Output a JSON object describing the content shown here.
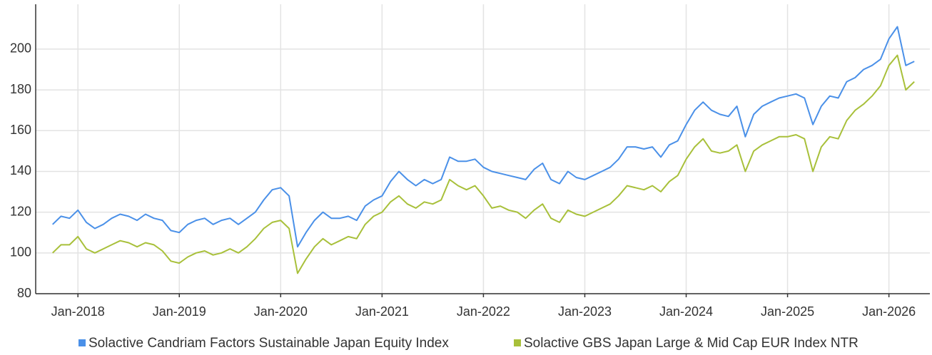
{
  "chart_data": {
    "type": "line",
    "x": [
      "2017-10",
      "2017-11",
      "2017-12",
      "2018-01",
      "2018-02",
      "2018-03",
      "2018-04",
      "2018-05",
      "2018-06",
      "2018-07",
      "2018-08",
      "2018-09",
      "2018-10",
      "2018-11",
      "2018-12",
      "2019-01",
      "2019-02",
      "2019-03",
      "2019-04",
      "2019-05",
      "2019-06",
      "2019-07",
      "2019-08",
      "2019-09",
      "2019-10",
      "2019-11",
      "2019-12",
      "2020-01",
      "2020-02",
      "2020-03",
      "2020-04",
      "2020-05",
      "2020-06",
      "2020-07",
      "2020-08",
      "2020-09",
      "2020-10",
      "2020-11",
      "2020-12",
      "2021-01",
      "2021-02",
      "2021-03",
      "2021-04",
      "2021-05",
      "2021-06",
      "2021-07",
      "2021-08",
      "2021-09",
      "2021-10",
      "2021-11",
      "2021-12",
      "2022-01",
      "2022-02",
      "2022-03",
      "2022-04",
      "2022-05",
      "2022-06",
      "2022-07",
      "2022-08",
      "2022-09",
      "2022-10",
      "2022-11",
      "2022-12",
      "2023-01",
      "2023-02",
      "2023-03",
      "2023-04",
      "2023-05",
      "2023-06",
      "2023-07",
      "2023-08",
      "2023-09",
      "2023-10",
      "2023-11",
      "2023-12",
      "2024-01",
      "2024-02",
      "2024-03",
      "2024-04",
      "2024-05",
      "2024-06",
      "2024-07",
      "2024-08",
      "2024-09",
      "2024-10",
      "2024-11",
      "2024-12",
      "2025-01",
      "2025-02",
      "2025-03",
      "2025-04",
      "2025-05",
      "2025-06",
      "2025-07",
      "2025-08",
      "2025-09",
      "2025-10",
      "2025-11",
      "2025-12",
      "2026-01",
      "2026-02",
      "2026-03",
      "2026-04"
    ],
    "series": [
      {
        "name": "Solactive Candriam Factors Sustainable Japan Equity Index",
        "color": "#4a90e8",
        "values": [
          114,
          118,
          117,
          121,
          115,
          112,
          114,
          117,
          119,
          118,
          116,
          119,
          117,
          116,
          111,
          110,
          114,
          116,
          117,
          114,
          116,
          117,
          114,
          117,
          120,
          126,
          131,
          132,
          128,
          103,
          110,
          116,
          120,
          117,
          117,
          118,
          116,
          123,
          126,
          128,
          135,
          140,
          136,
          133,
          136,
          134,
          136,
          147,
          145,
          145,
          146,
          142,
          140,
          139,
          138,
          137,
          136,
          141,
          144,
          136,
          134,
          140,
          137,
          136,
          138,
          140,
          142,
          146,
          152,
          152,
          151,
          152,
          147,
          153,
          155,
          163,
          170,
          174,
          170,
          168,
          167,
          172,
          157,
          168,
          172,
          174,
          176,
          177,
          178,
          176,
          163,
          172,
          177,
          176,
          184,
          186,
          190,
          192,
          195,
          205,
          211,
          192,
          194
        ]
      },
      {
        "name": "Solactive GBS Japan Large & Mid Cap EUR Index NTR",
        "color": "#a8c03a",
        "values": [
          100,
          104,
          104,
          108,
          102,
          100,
          102,
          104,
          106,
          105,
          103,
          105,
          104,
          101,
          96,
          95,
          98,
          100,
          101,
          99,
          100,
          102,
          100,
          103,
          107,
          112,
          115,
          116,
          112,
          90,
          97,
          103,
          107,
          104,
          106,
          108,
          107,
          114,
          118,
          120,
          125,
          128,
          124,
          122,
          125,
          124,
          126,
          136,
          133,
          131,
          133,
          128,
          122,
          123,
          121,
          120,
          117,
          121,
          124,
          117,
          115,
          121,
          119,
          118,
          120,
          122,
          124,
          128,
          133,
          132,
          131,
          133,
          130,
          135,
          138,
          146,
          152,
          156,
          150,
          149,
          150,
          153,
          140,
          150,
          153,
          155,
          157,
          157,
          158,
          156,
          140,
          152,
          157,
          156,
          165,
          170,
          173,
          177,
          182,
          192,
          197,
          180,
          184
        ]
      }
    ],
    "xlim": [
      "2017-08",
      "2026-05"
    ],
    "xticks": [
      {
        "value": "2018-01",
        "label": "Jan-2018"
      },
      {
        "value": "2019-01",
        "label": "Jan-2019"
      },
      {
        "value": "2020-01",
        "label": "Jan-2020"
      },
      {
        "value": "2021-01",
        "label": "Jan-2021"
      },
      {
        "value": "2022-01",
        "label": "Jan-2022"
      },
      {
        "value": "2023-01",
        "label": "Jan-2023"
      },
      {
        "value": "2024-01",
        "label": "Jan-2024"
      },
      {
        "value": "2025-01",
        "label": "Jan-2025"
      },
      {
        "value": "2026-01",
        "label": "Jan-2026"
      }
    ],
    "ylim": [
      80,
      222
    ],
    "yticks": [
      80,
      100,
      120,
      140,
      160,
      180,
      200
    ],
    "grid": true,
    "legend": "bottom"
  }
}
